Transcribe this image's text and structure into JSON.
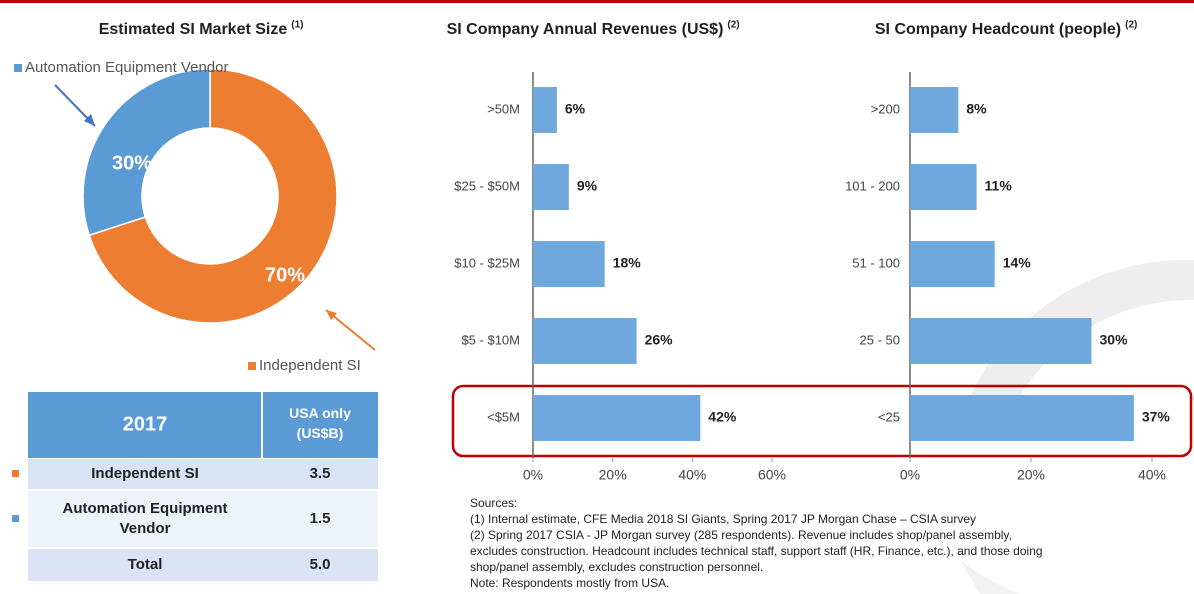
{
  "chart_data": [
    {
      "type": "donut",
      "title": "Estimated SI Market Size",
      "title_superscript": "(1)",
      "categories": [
        "Automation Equipment Vendor",
        "Independent SI"
      ],
      "values": [
        30,
        70
      ],
      "value_labels": [
        "30%",
        "70%"
      ],
      "colors": [
        "#5b9bd5",
        "#ed7d31"
      ]
    },
    {
      "type": "hbar",
      "title": "SI Company Annual Revenues (US$)",
      "title_superscript": "(2)",
      "categories": [
        ">50M",
        "$25 - $50M",
        "$10 - $25M",
        "$5 - $10M",
        "<$5M"
      ],
      "values": [
        6,
        9,
        18,
        26,
        42
      ],
      "value_labels": [
        "6%",
        "9%",
        "18%",
        "26%",
        "42%"
      ],
      "color": "#6fa8dc",
      "xlim": [
        0,
        60
      ],
      "xticks": [
        {
          "value": 0,
          "label": "0%"
        },
        {
          "value": 20,
          "label": "20%"
        },
        {
          "value": 40,
          "label": "40%"
        },
        {
          "value": 60,
          "label": "60%"
        }
      ]
    },
    {
      "type": "hbar",
      "title": "SI Company Headcount (people)",
      "title_superscript": "(2)",
      "categories": [
        ">200",
        "101 - 200",
        "51 - 100",
        "25 - 50",
        "<25"
      ],
      "values": [
        8,
        11,
        14,
        30,
        37
      ],
      "value_labels": [
        "8%",
        "11%",
        "14%",
        "30%",
        "37%"
      ],
      "color": "#6fa8dc",
      "xlim": [
        0,
        40
      ],
      "xticks": [
        {
          "value": 0,
          "label": "0%"
        },
        {
          "value": 20,
          "label": "20%"
        },
        {
          "value": 40,
          "label": "40%"
        }
      ]
    }
  ],
  "table": {
    "header": [
      "2017",
      "USA only (US$B)"
    ],
    "rows": [
      [
        "Independent SI",
        "3.5"
      ],
      [
        "Automation Equipment Vendor",
        "1.5"
      ],
      [
        "Total",
        "5.0"
      ]
    ]
  },
  "sources": [
    "Sources:",
    "(1) Internal estimate, CFE Media 2018 SI Giants, Spring 2017 JP Morgan Chase – CSIA survey",
    "(2) Spring 2017 CSIA - JP Morgan survey (285 respondents). Revenue includes shop/panel assembly,",
    "excludes construction. Headcount includes technical staff, support staff (HR, Finance, etc.), and those doing",
    "shop/panel assembly, excludes construction personnel.",
    "Note: Respondents mostly from USA."
  ]
}
